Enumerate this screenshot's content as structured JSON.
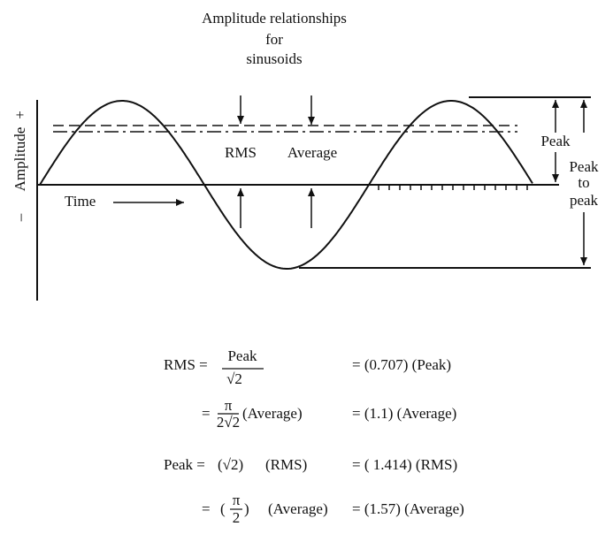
{
  "title": [
    "Amplitude relationships",
    "for",
    "sinusoids"
  ],
  "axis_label": {
    "minus": "–",
    "text": "Amplitude",
    "plus": "+"
  },
  "labels": {
    "rms": "RMS",
    "average": "Average",
    "time": "Time",
    "peak": "Peak",
    "peak_to_peak": [
      "Peak",
      "to",
      "peak"
    ]
  },
  "formulas": [
    {
      "lhs": "RMS =",
      "numerator": "Peak",
      "denominator": "√2",
      "result": "= (0.707) (Peak)"
    },
    {
      "lhs": "=",
      "numerator": "π",
      "denominator": "2√2",
      "factor": "(Average)",
      "result": "= (1.1) (Average)"
    },
    {
      "lhs": "Peak =",
      "term": "(√2)",
      "factor": "(RMS)",
      "result": "= ( 1.414) (RMS)"
    },
    {
      "lhs": "=",
      "open": "(",
      "numerator": "π",
      "denominator": "2",
      "close": ")",
      "factor": "(Average)",
      "result": "= (1.57) (Average)"
    }
  ]
}
